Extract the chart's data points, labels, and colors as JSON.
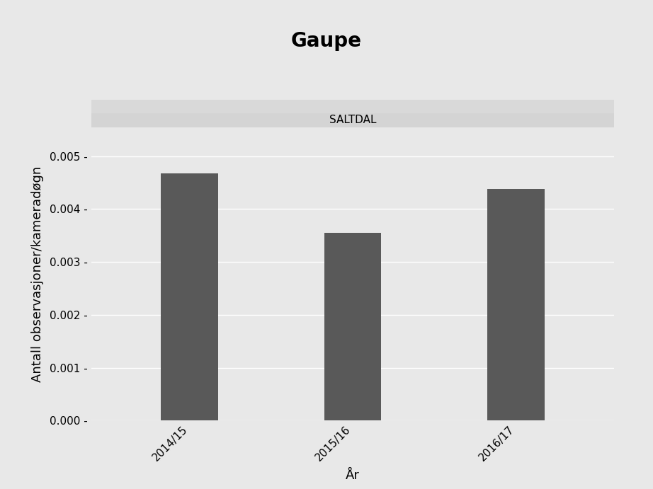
{
  "title": "Gaupe",
  "subtitle": "SALTDAL",
  "xlabel": "År",
  "ylabel": "Antall observasjoner/kameradøgn",
  "categories": [
    "2014/15",
    "2015/16",
    "2016/17"
  ],
  "values": [
    0.00468,
    0.00355,
    0.00438
  ],
  "bar_color": "#595959",
  "background_outer": "#e8e8e8",
  "background_panel": "#e8e8e8",
  "strip_background": "#d4d4d4",
  "strip_border_color": "#c0c0c0",
  "ylim": [
    0,
    0.00555
  ],
  "yticks": [
    0.0,
    0.001,
    0.002,
    0.003,
    0.004,
    0.005
  ],
  "title_fontsize": 20,
  "subtitle_fontsize": 11,
  "axis_label_fontsize": 13,
  "tick_fontsize": 11,
  "bar_width": 0.35
}
